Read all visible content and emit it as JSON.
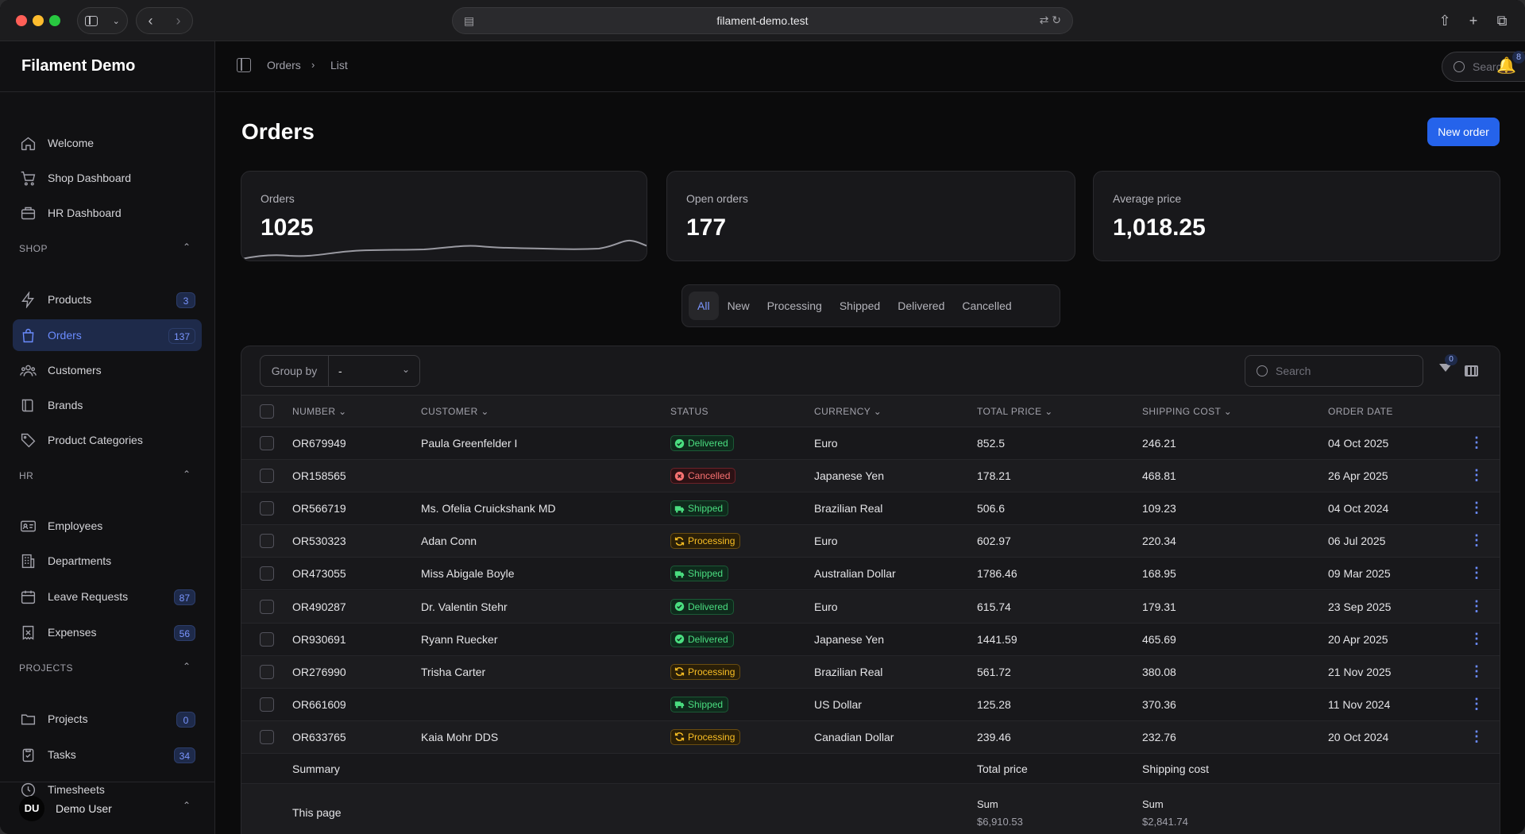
{
  "browser": {
    "url": "filament-demo.test"
  },
  "app": {
    "brand": "Filament Demo"
  },
  "sidebar": {
    "top_items": [
      {
        "label": "Welcome"
      },
      {
        "label": "Shop Dashboard"
      },
      {
        "label": "HR Dashboard"
      }
    ],
    "groups": [
      {
        "label": "SHOP",
        "items": [
          {
            "label": "Products",
            "badge": "3"
          },
          {
            "label": "Orders",
            "badge": "137"
          },
          {
            "label": "Customers"
          },
          {
            "label": "Brands"
          },
          {
            "label": "Product Categories"
          }
        ]
      },
      {
        "label": "HR",
        "items": [
          {
            "label": "Employees"
          },
          {
            "label": "Departments"
          },
          {
            "label": "Leave Requests",
            "badge": "87"
          },
          {
            "label": "Expenses",
            "badge": "56"
          }
        ]
      },
      {
        "label": "PROJECTS",
        "items": [
          {
            "label": "Projects",
            "badge": "0"
          },
          {
            "label": "Tasks",
            "badge": "34"
          },
          {
            "label": "Timesheets"
          }
        ]
      }
    ],
    "user": {
      "initials": "DU",
      "name": "Demo User"
    }
  },
  "topbar": {
    "breadcrumbs": [
      "Orders",
      "List"
    ],
    "search_placeholder": "Search",
    "notification_count": "8"
  },
  "page": {
    "title": "Orders",
    "new_button": "New order"
  },
  "stats": [
    {
      "label": "Orders",
      "value": "1025"
    },
    {
      "label": "Open orders",
      "value": "177"
    },
    {
      "label": "Average price",
      "value": "1,018.25"
    }
  ],
  "tabs": [
    "All",
    "New",
    "Processing",
    "Shipped",
    "Delivered",
    "Cancelled"
  ],
  "table": {
    "group_by_label": "Group by",
    "group_by_value": "-",
    "search_placeholder": "Search",
    "filter_count": "0",
    "columns": [
      "NUMBER",
      "CUSTOMER",
      "STATUS",
      "CURRENCY",
      "TOTAL PRICE",
      "SHIPPING COST",
      "ORDER DATE"
    ],
    "rows": [
      {
        "number": "OR679949",
        "customer": "Paula Greenfelder I",
        "status": "Delivered",
        "currency": "Euro",
        "total": "852.5",
        "shipping": "246.21",
        "date": "04 Oct 2025"
      },
      {
        "number": "OR158565",
        "customer": "",
        "status": "Cancelled",
        "currency": "Japanese Yen",
        "total": "178.21",
        "shipping": "468.81",
        "date": "26 Apr 2025"
      },
      {
        "number": "OR566719",
        "customer": "Ms. Ofelia Cruickshank MD",
        "status": "Shipped",
        "currency": "Brazilian Real",
        "total": "506.6",
        "shipping": "109.23",
        "date": "04 Oct 2024"
      },
      {
        "number": "OR530323",
        "customer": "Adan Conn",
        "status": "Processing",
        "currency": "Euro",
        "total": "602.97",
        "shipping": "220.34",
        "date": "06 Jul 2025"
      },
      {
        "number": "OR473055",
        "customer": "Miss Abigale Boyle",
        "status": "Shipped",
        "currency": "Australian Dollar",
        "total": "1786.46",
        "shipping": "168.95",
        "date": "09 Mar 2025"
      },
      {
        "number": "OR490287",
        "customer": "Dr. Valentin Stehr",
        "status": "Delivered",
        "currency": "Euro",
        "total": "615.74",
        "shipping": "179.31",
        "date": "23 Sep 2025"
      },
      {
        "number": "OR930691",
        "customer": "Ryann Ruecker",
        "status": "Delivered",
        "currency": "Japanese Yen",
        "total": "1441.59",
        "shipping": "465.69",
        "date": "20 Apr 2025"
      },
      {
        "number": "OR276990",
        "customer": "Trisha Carter",
        "status": "Processing",
        "currency": "Brazilian Real",
        "total": "561.72",
        "shipping": "380.08",
        "date": "21 Nov 2025"
      },
      {
        "number": "OR661609",
        "customer": "",
        "status": "Shipped",
        "currency": "US Dollar",
        "total": "125.28",
        "shipping": "370.36",
        "date": "11 Nov 2024"
      },
      {
        "number": "OR633765",
        "customer": "Kaia Mohr DDS",
        "status": "Processing",
        "currency": "Canadian Dollar",
        "total": "239.46",
        "shipping": "232.76",
        "date": "20 Oct 2024"
      }
    ],
    "summary": {
      "label": "Summary",
      "total_label": "Total price",
      "shipping_label": "Shipping cost",
      "page_label": "This page",
      "sum_label": "Sum",
      "total_sum": "$6,910.53",
      "shipping_sum": "$2,841.74"
    }
  },
  "colors": {
    "accent": "#2563eb",
    "active_nav": "#6b8cff"
  }
}
